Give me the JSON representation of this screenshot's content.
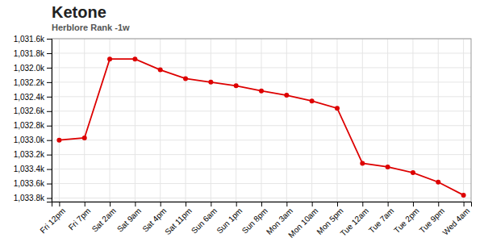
{
  "chart_data": {
    "type": "line",
    "title": "Ketone",
    "subtitle": "Herblore Rank -1w",
    "categories": [
      "Fri 12pm",
      "Fri 7pm",
      "Sat 2am",
      "Sat 9am",
      "Sat 4pm",
      "Sat 11pm",
      "Sun 6am",
      "Sun 1pm",
      "Sun 8pm",
      "Mon 3am",
      "Mon 10am",
      "Mon 5pm",
      "Tue 12am",
      "Tue 7am",
      "Tue 2pm",
      "Tue 9pm",
      "Wed 4am"
    ],
    "values": [
      1033.0,
      1032.97,
      1031.88,
      1031.88,
      1032.03,
      1032.15,
      1032.2,
      1032.25,
      1032.32,
      1032.38,
      1032.46,
      1032.56,
      1033.32,
      1033.37,
      1033.45,
      1033.58,
      1033.76
    ],
    "color": "#dd0000",
    "marker": "circle",
    "ylim": [
      1033.85,
      1031.6
    ],
    "yticks": [
      {
        "value": 1031.6,
        "label": "1,031.6k"
      },
      {
        "value": 1031.8,
        "label": "1,031.8k"
      },
      {
        "value": 1032.0,
        "label": "1,032.0k"
      },
      {
        "value": 1032.2,
        "label": "1,032.2k"
      },
      {
        "value": 1032.4,
        "label": "1,032.4k"
      },
      {
        "value": 1032.6,
        "label": "1,032.6k"
      },
      {
        "value": 1032.8,
        "label": "1,032.8k"
      },
      {
        "value": 1033.0,
        "label": "1,033.0k"
      },
      {
        "value": 1033.2,
        "label": "1,033.2k"
      },
      {
        "value": 1033.4,
        "label": "1,033.4k"
      },
      {
        "value": 1033.6,
        "label": "1,033.6k"
      },
      {
        "value": 1033.8,
        "label": "1,033.8k"
      }
    ],
    "grid": true
  }
}
